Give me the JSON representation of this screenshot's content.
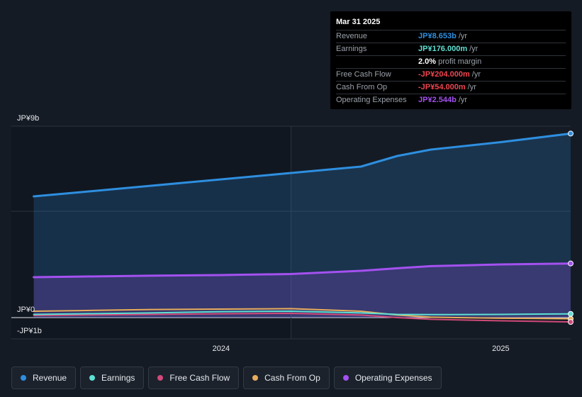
{
  "tooltip": {
    "date": "Mar 31 2025",
    "rows": [
      {
        "name": "Revenue",
        "value": "JP¥8.653b",
        "unit": "/yr",
        "color": "#2e8fe0"
      },
      {
        "name": "Earnings",
        "value": "JP¥176.000m",
        "unit": "/yr",
        "color": "#5ee0d3"
      },
      {
        "name": "",
        "value": "2.0%",
        "unit": "profit margin",
        "color": "#ffffff"
      },
      {
        "name": "Free Cash Flow",
        "value": "-JP¥204.000m",
        "unit": "/yr",
        "color": "#f0454f"
      },
      {
        "name": "Cash From Op",
        "value": "-JP¥54.000m",
        "unit": "/yr",
        "color": "#f0454f"
      },
      {
        "name": "Operating Expenses",
        "value": "JP¥2.544b",
        "unit": "/yr",
        "color": "#a451f0"
      }
    ]
  },
  "chart_data": {
    "type": "area",
    "y_labels": {
      "top": "JP¥9b",
      "zero": "JP¥0",
      "bottom": "-JP¥1b"
    },
    "ylim": [
      -1,
      9
    ],
    "xlim": [
      2023.25,
      2025.25
    ],
    "x_ticks": [
      {
        "value": 2024.0,
        "label": "2024"
      },
      {
        "value": 2025.0,
        "label": "2025"
      }
    ],
    "highlight_start": 2024.25,
    "grid": true,
    "legend_position": "bottom-left",
    "x": [
      2023.33,
      2023.5,
      2023.75,
      2024.0,
      2024.25,
      2024.5,
      2024.63,
      2024.75,
      2025.0,
      2025.25
    ],
    "series": [
      {
        "name": "Revenue",
        "color": "#2e8fe0",
        "values": [
          5.7,
          5.9,
          6.2,
          6.5,
          6.8,
          7.1,
          7.6,
          7.9,
          8.25,
          8.653
        ]
      },
      {
        "name": "Earnings",
        "color": "#5ee0d3",
        "values": [
          0.15,
          0.18,
          0.22,
          0.28,
          0.3,
          0.22,
          0.15,
          0.14,
          0.15,
          0.176
        ]
      },
      {
        "name": "Free Cash Flow",
        "color": "#d04a7a",
        "values": [
          0.1,
          0.12,
          0.15,
          0.18,
          0.2,
          0.12,
          0.0,
          -0.08,
          -0.15,
          -0.204
        ]
      },
      {
        "name": "Cash From Op",
        "color": "#e8ad5c",
        "values": [
          0.3,
          0.33,
          0.38,
          0.4,
          0.42,
          0.3,
          0.12,
          0.02,
          -0.03,
          -0.054
        ]
      },
      {
        "name": "Operating Expenses",
        "color": "#a451f0",
        "values": [
          1.9,
          1.93,
          1.97,
          2.0,
          2.05,
          2.2,
          2.32,
          2.42,
          2.5,
          2.544
        ]
      }
    ]
  },
  "legend": [
    {
      "label": "Revenue",
      "color": "#2e8fe0"
    },
    {
      "label": "Earnings",
      "color": "#5ee0d3"
    },
    {
      "label": "Free Cash Flow",
      "color": "#d04a7a"
    },
    {
      "label": "Cash From Op",
      "color": "#e8ad5c"
    },
    {
      "label": "Operating Expenses",
      "color": "#a451f0"
    }
  ]
}
